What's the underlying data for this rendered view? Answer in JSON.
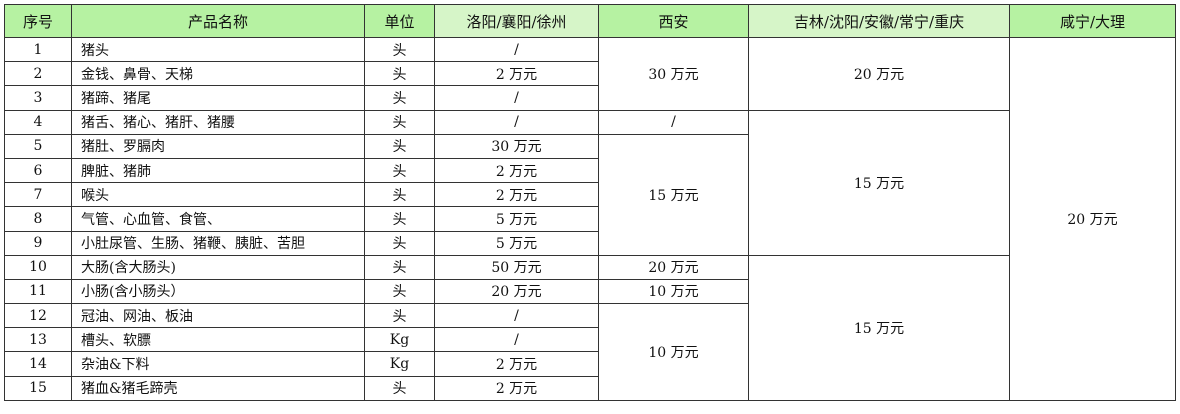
{
  "header": [
    "序号",
    "产品名称",
    "单位",
    "洛阳/襄阳/徐州",
    "西安",
    "吉林/沈阳/安徽/常宁/重庆",
    "咸宁/大理"
  ],
  "header_colors": [
    "#b6f2a2",
    "#b6f2a2",
    "#b6f2a2",
    "#d6f5c8",
    "#b6f2a2",
    "#d6f5c8",
    "#b6f2a2"
  ],
  "rows": [
    {
      "no": "1",
      "name": "猪头",
      "unit": "头",
      "luoyang": "/"
    },
    {
      "no": "2",
      "name": "金钱、鼻骨、天梯",
      "unit": "头",
      "luoyang": "2 万元"
    },
    {
      "no": "3",
      "name": "猪蹄、猪尾",
      "unit": "头",
      "luoyang": "/"
    },
    {
      "no": "4",
      "name": "猪舌、猪心、猪肝、猪腰",
      "unit": "头",
      "luoyang": "/"
    },
    {
      "no": "5",
      "name": "猪肚、罗膈肉",
      "unit": "头",
      "luoyang": "30 万元"
    },
    {
      "no": "6",
      "name": "脾脏、猪肺",
      "unit": "头",
      "luoyang": "2 万元"
    },
    {
      "no": "7",
      "name": "喉头",
      "unit": "头",
      "luoyang": "2 万元"
    },
    {
      "no": "8",
      "name": "气管、心血管、食管、",
      "unit": "头",
      "luoyang": "5 万元"
    },
    {
      "no": "9",
      "name": "小肚尿管、生肠、猪鞭、胰脏、苦胆",
      "unit": "头",
      "luoyang": "5 万元"
    },
    {
      "no": "10",
      "name": "大肠(含大肠头)",
      "unit": "头",
      "luoyang": "50 万元"
    },
    {
      "no": "11",
      "name": "小肠(含小肠头）",
      "unit": "头",
      "luoyang": "20 万元"
    },
    {
      "no": "12",
      "name": "冠油、网油、板油",
      "unit": "头",
      "luoyang": "/"
    },
    {
      "no": "13",
      "name": "槽头、软膘",
      "unit": "Kg",
      "luoyang": "/"
    },
    {
      "no": "14",
      "name": "杂油&下料",
      "unit": "Kg",
      "luoyang": "2 万元"
    },
    {
      "no": "15",
      "name": "猪血&猪毛蹄壳",
      "unit": "头",
      "luoyang": "2 万元"
    }
  ],
  "xian": [
    {
      "start": 1,
      "span": 3,
      "value": "30 万元"
    },
    {
      "start": 4,
      "span": 1,
      "value": "/"
    },
    {
      "start": 5,
      "span": 5,
      "value": "15 万元"
    },
    {
      "start": 10,
      "span": 1,
      "value": "20 万元"
    },
    {
      "start": 11,
      "span": 1,
      "value": "10 万元"
    },
    {
      "start": 12,
      "span": 4,
      "value": "10 万元"
    }
  ],
  "jilin": [
    {
      "start": 1,
      "span": 3,
      "value": "20 万元"
    },
    {
      "start": 4,
      "span": 6,
      "value": "15 万元"
    },
    {
      "start": 10,
      "span": 6,
      "value": "15 万元"
    }
  ],
  "xianning": [
    {
      "start": 1,
      "span": 15,
      "value": "20 万元"
    }
  ]
}
